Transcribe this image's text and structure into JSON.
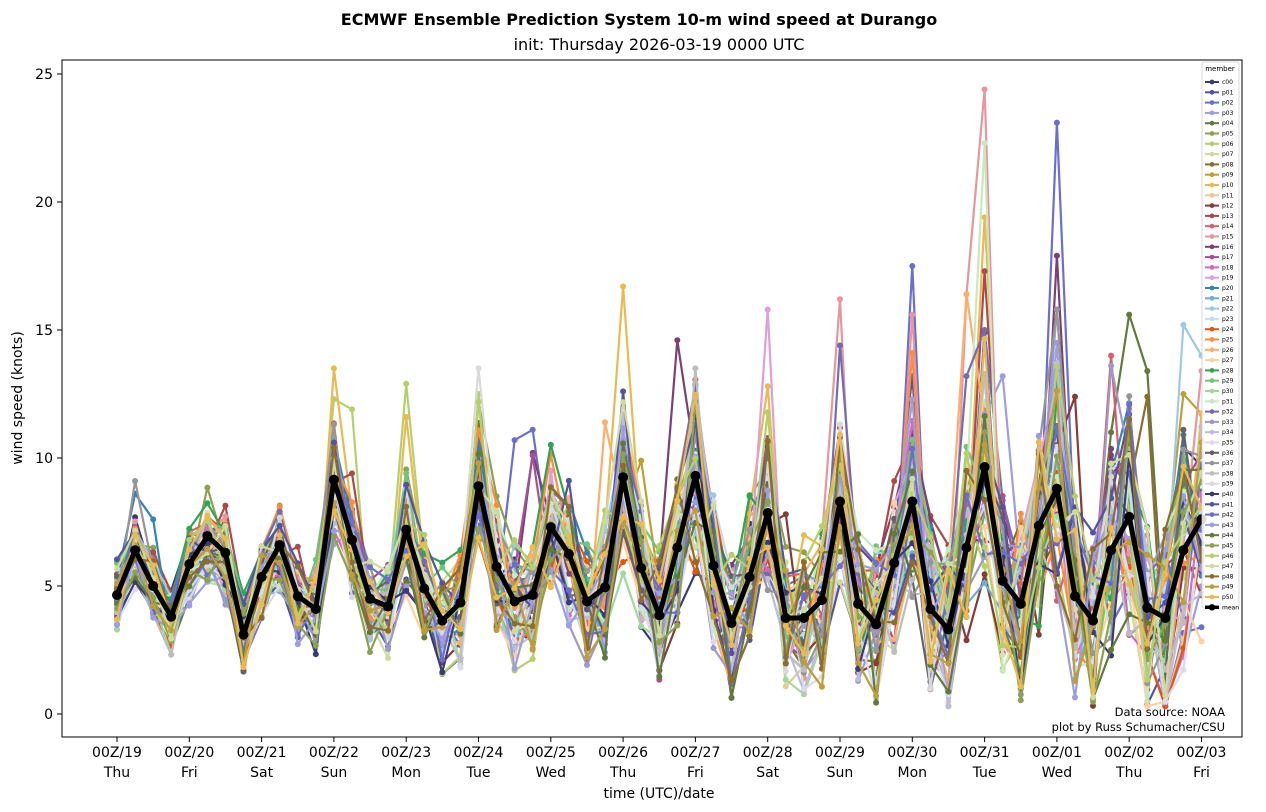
{
  "chart_data": {
    "type": "line",
    "title": "ECMWF Ensemble Prediction System 10-m wind speed at Durango",
    "subtitle": "init: Thursday 2026-03-19 0000 UTC",
    "xlabel": "time (UTC)/date",
    "ylabel": "wind speed (knots)",
    "ylim": [
      -0.9,
      25.6
    ],
    "yticks": [
      0,
      5,
      10,
      15,
      20,
      25
    ],
    "x_step_hours": 6,
    "x_start": "2026-03-19 00Z",
    "xlim_days": [
      -0.7,
      15.4
    ],
    "xticks": [
      {
        "day": 0,
        "line1": "00Z/19",
        "line2": "Thu"
      },
      {
        "day": 1,
        "line1": "00Z/20",
        "line2": "Fri"
      },
      {
        "day": 2,
        "line1": "00Z/21",
        "line2": "Sat"
      },
      {
        "day": 3,
        "line1": "00Z/22",
        "line2": "Sun"
      },
      {
        "day": 4,
        "line1": "00Z/23",
        "line2": "Mon"
      },
      {
        "day": 5,
        "line1": "00Z/24",
        "line2": "Tue"
      },
      {
        "day": 6,
        "line1": "00Z/25",
        "line2": "Wed"
      },
      {
        "day": 7,
        "line1": "00Z/26",
        "line2": "Thu"
      },
      {
        "day": 8,
        "line1": "00Z/27",
        "line2": "Fri"
      },
      {
        "day": 9,
        "line1": "00Z/28",
        "line2": "Sat"
      },
      {
        "day": 10,
        "line1": "00Z/29",
        "line2": "Sun"
      },
      {
        "day": 11,
        "line1": "00Z/30",
        "line2": "Mon"
      },
      {
        "day": 12,
        "line1": "00Z/31",
        "line2": "Tue"
      },
      {
        "day": 13,
        "line1": "00Z/01",
        "line2": "Wed"
      },
      {
        "day": 14,
        "line1": "00Z/02",
        "line2": "Thu"
      },
      {
        "day": 15,
        "line1": "00Z/03",
        "line2": "Fri"
      }
    ],
    "grid": false,
    "legend": {
      "title": "member",
      "placement": "top-right"
    },
    "credits": [
      "Data source: NOAA",
      "plot by Russ Schumacher/CSU"
    ],
    "mean": {
      "name": "mean",
      "color": "#000000",
      "values": [
        4.65,
        6.4,
        5.0,
        3.8,
        5.85,
        6.95,
        6.3,
        3.1,
        5.35,
        6.6,
        4.6,
        4.1,
        9.15,
        6.8,
        4.5,
        4.2,
        7.2,
        4.9,
        3.65,
        4.35,
        8.9,
        5.75,
        4.4,
        4.65,
        7.3,
        6.25,
        4.4,
        4.95,
        9.25,
        5.7,
        3.85,
        6.5,
        9.3,
        5.8,
        3.55,
        5.35,
        7.85,
        3.75,
        3.75,
        4.45,
        8.3,
        4.3,
        3.5,
        5.9,
        8.3,
        4.1,
        3.3,
        6.5,
        9.65,
        5.2,
        4.3,
        7.35,
        8.8,
        4.6,
        3.65,
        6.4,
        7.7,
        4.15,
        3.75,
        6.4,
        7.6
      ]
    },
    "members": [
      {
        "name": "c00",
        "color": "#393b79",
        "peaks": {
          "32": 5.5,
          "52": 13.4,
          "55": 9.6
        }
      },
      {
        "name": "p01",
        "color": "#5254a3",
        "peaks": {
          "24": 8.3,
          "44": 13.2,
          "48": 14.9
        }
      },
      {
        "name": "p02",
        "color": "#6b6ecf",
        "peaks": {
          "44": 17.5,
          "48": 15.0,
          "52": 23.1,
          "22": 10.7,
          "23": 11.1
        }
      },
      {
        "name": "p03",
        "color": "#9c9ede",
        "peaks": {
          "49": 13.2,
          "52": 14.5
        }
      },
      {
        "name": "p04",
        "color": "#637939",
        "peaks": {
          "56": 15.6,
          "57": 13.4,
          "55": 11.0
        }
      },
      {
        "name": "p05",
        "color": "#8ca252",
        "peaks": {
          "21": 8.5,
          "20": 12.2
        }
      },
      {
        "name": "p06",
        "color": "#b5cf6b",
        "peaks": {
          "12": 12.3,
          "13": 11.9,
          "16": 12.9,
          "20": 12.5,
          "32": 12.9
        }
      },
      {
        "name": "p07",
        "color": "#cedb9c",
        "peaks": {
          "48": 12.2
        }
      },
      {
        "name": "p08",
        "color": "#8c6d31",
        "peaks": {
          "36": 10.5,
          "52": 12.6,
          "57": 12.4
        }
      },
      {
        "name": "p09",
        "color": "#bd9e39",
        "peaks": {
          "29": 9.9,
          "40": 10.8,
          "59": 12.5
        }
      },
      {
        "name": "p10",
        "color": "#e7ba52",
        "peaks": {
          "12": 13.5,
          "16": 11.6,
          "28": 16.7,
          "36": 12.8,
          "48": 19.4
        }
      },
      {
        "name": "p11",
        "color": "#e7cb94",
        "peaks": {
          "36": 9.0
        }
      },
      {
        "name": "p12",
        "color": "#843c39",
        "peaks": {
          "37": 7.8,
          "53": 12.4
        }
      },
      {
        "name": "p13",
        "color": "#ad494a",
        "peaks": {
          "48": 17.3
        }
      },
      {
        "name": "p14",
        "color": "#d6616b",
        "peaks": {
          "55": 14.0
        }
      },
      {
        "name": "p15",
        "color": "#e7969c",
        "peaks": {
          "40": 16.2,
          "44": 15.6,
          "47": 16.4,
          "48": 24.4,
          "60": 13.4
        }
      },
      {
        "name": "p16",
        "color": "#7b4173",
        "peaks": {
          "31": 14.6,
          "52": 17.9,
          "23": 10.2
        }
      },
      {
        "name": "p17",
        "color": "#a55194",
        "peaks": {
          "23": 10.1
        }
      },
      {
        "name": "p18",
        "color": "#ce6dbd",
        "peaks": {
          "24": 9.5
        }
      },
      {
        "name": "p19",
        "color": "#de9ed6",
        "peaks": {
          "36": 15.8,
          "24": 9.5
        }
      },
      {
        "name": "p20",
        "color": "#3182bd",
        "peaks": {
          "1": 8.6,
          "2": 7.6
        }
      },
      {
        "name": "p21",
        "color": "#6baed6",
        "peaks": {
          "52": 12.2
        }
      },
      {
        "name": "p22",
        "color": "#9ecae1",
        "peaks": {
          "59": 15.2,
          "60": 14.0
        }
      },
      {
        "name": "p23",
        "color": "#c6dbef",
        "peaks": {
          "52": 12.0
        }
      },
      {
        "name": "p24",
        "color": "#e6550d",
        "peaks": {
          "0": 3.3
        }
      },
      {
        "name": "p25",
        "color": "#fd8d3c",
        "peaks": {
          "44": 14.1
        }
      },
      {
        "name": "p26",
        "color": "#fdae6b",
        "peaks": {
          "27": 11.4,
          "47": 16.4
        }
      },
      {
        "name": "p27",
        "color": "#fdd0a2",
        "peaks": {}
      },
      {
        "name": "p28",
        "color": "#31a354",
        "peaks": {
          "52": 12.5
        }
      },
      {
        "name": "p29",
        "color": "#74c476",
        "peaks": {
          "56": 11.1
        }
      },
      {
        "name": "p30",
        "color": "#a1d99b",
        "peaks": {
          "48": 11.5
        }
      },
      {
        "name": "p31",
        "color": "#c7e9c0",
        "peaks": {
          "48": 22.3
        }
      },
      {
        "name": "p32",
        "color": "#756bb1",
        "peaks": {
          "40": 14.4,
          "47": 13.2,
          "48": 15.0
        }
      },
      {
        "name": "p33",
        "color": "#9e9ac8",
        "peaks": {
          "52": 15.8,
          "55": 13.6
        }
      },
      {
        "name": "p34",
        "color": "#bcbddc",
        "peaks": {
          "52": 13.7
        }
      },
      {
        "name": "p35",
        "color": "#dadaeb",
        "peaks": {
          "48": 13.0
        }
      },
      {
        "name": "p36",
        "color": "#636363",
        "peaks": {
          "59": 11.1
        }
      },
      {
        "name": "p37",
        "color": "#969696",
        "peaks": {
          "1": 9.1,
          "12": 11.3,
          "52": 15.8
        }
      },
      {
        "name": "p38",
        "color": "#bdbdbd",
        "peaks": {
          "32": 13.5
        }
      },
      {
        "name": "p39",
        "color": "#d9d9d9",
        "peaks": {
          "20": 13.5
        }
      },
      {
        "name": "p40",
        "color": "#393b79",
        "peaks": {}
      },
      {
        "name": "p41",
        "color": "#5254a3",
        "peaks": {
          "28": 12.6
        }
      },
      {
        "name": "p42",
        "color": "#6b6ecf",
        "peaks": {}
      },
      {
        "name": "p43",
        "color": "#9c9ede",
        "peaks": {
          "44": 12.3
        }
      },
      {
        "name": "p44",
        "color": "#637939",
        "peaks": {}
      },
      {
        "name": "p45",
        "color": "#8ca252",
        "peaks": {}
      },
      {
        "name": "p46",
        "color": "#b5cf6b",
        "peaks": {
          "20": 12.2
        }
      },
      {
        "name": "p47",
        "color": "#cedb9c",
        "peaks": {}
      },
      {
        "name": "p48",
        "color": "#8c6d31",
        "peaks": {
          "40": 10.8
        }
      },
      {
        "name": "p49",
        "color": "#bd9e39",
        "peaks": {}
      },
      {
        "name": "p50",
        "color": "#e7ba52",
        "peaks": {}
      }
    ],
    "spread_note": "member values = mean + per-member deviations (approximate, read visually); notable peaks listed by 6-hourly step index"
  }
}
